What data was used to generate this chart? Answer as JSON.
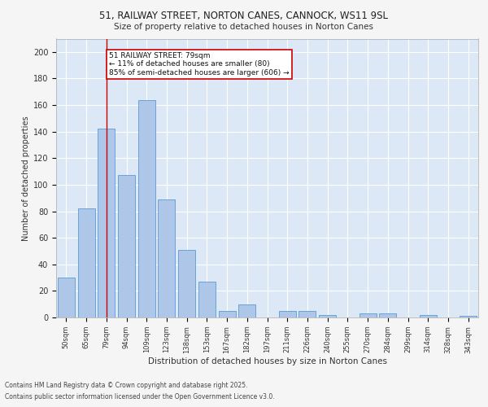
{
  "title1": "51, RAILWAY STREET, NORTON CANES, CANNOCK, WS11 9SL",
  "title2": "Size of property relative to detached houses in Norton Canes",
  "xlabel": "Distribution of detached houses by size in Norton Canes",
  "ylabel": "Number of detached properties",
  "categories": [
    "50sqm",
    "65sqm",
    "79sqm",
    "94sqm",
    "109sqm",
    "123sqm",
    "138sqm",
    "153sqm",
    "167sqm",
    "182sqm",
    "197sqm",
    "211sqm",
    "226sqm",
    "240sqm",
    "255sqm",
    "270sqm",
    "284sqm",
    "299sqm",
    "314sqm",
    "328sqm",
    "343sqm"
  ],
  "values": [
    30,
    82,
    142,
    107,
    164,
    89,
    51,
    27,
    5,
    10,
    0,
    5,
    5,
    2,
    0,
    3,
    3,
    0,
    2,
    0,
    1
  ],
  "bar_color": "#aec6e8",
  "bar_edge_color": "#5b9bd5",
  "vline_x_index": 2,
  "vline_color": "#cc0000",
  "annotation_text": "51 RAILWAY STREET: 79sqm\n← 11% of detached houses are smaller (80)\n85% of semi-detached houses are larger (606) →",
  "annotation_box_facecolor": "#ffffff",
  "annotation_box_edgecolor": "#cc0000",
  "ylim": [
    0,
    210
  ],
  "yticks": [
    0,
    20,
    40,
    60,
    80,
    100,
    120,
    140,
    160,
    180,
    200
  ],
  "background_color": "#dce8f5",
  "grid_color": "#ffffff",
  "fig_facecolor": "#f5f5f5",
  "footer_line1": "Contains HM Land Registry data © Crown copyright and database right 2025.",
  "footer_line2": "Contains public sector information licensed under the Open Government Licence v3.0."
}
